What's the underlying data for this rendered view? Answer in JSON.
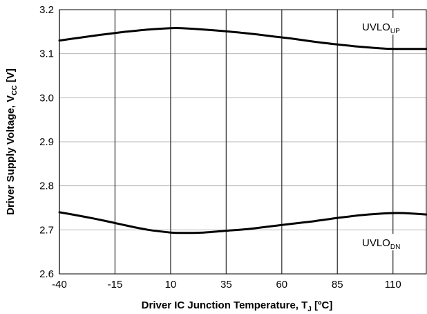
{
  "chart_data": {
    "type": "line",
    "xlabel": "Driver IC Junction Temperature, T",
    "xlabel_sub": "J",
    "xlabel_suffix": " [ºC]",
    "ylabel": "Driver Supply Voltage, V",
    "ylabel_sub": "CC",
    "ylabel_suffix": " [V]",
    "xlim": [
      -40,
      125
    ],
    "ylim": [
      2.6,
      3.2
    ],
    "x_ticks": [
      -40,
      -15,
      10,
      35,
      60,
      85,
      110
    ],
    "x_tick_labels": [
      "-40",
      "-15",
      "10",
      "35",
      "60",
      "85",
      "110"
    ],
    "y_ticks": [
      2.6,
      2.7,
      2.8,
      2.9,
      3.0,
      3.1,
      3.2
    ],
    "y_tick_labels": [
      "2.6",
      "2.7",
      "2.8",
      "2.9",
      "3.0",
      "3.1",
      "3.2"
    ],
    "grid": "vertical and horizontal major gridlines",
    "series": [
      {
        "name": "UVLO",
        "name_sub": "UP",
        "color": "#000000",
        "x": [
          -40,
          -30,
          -20,
          -10,
          0,
          10,
          15,
          25,
          35,
          45,
          55,
          65,
          75,
          85,
          95,
          105,
          110,
          115,
          125
        ],
        "y": [
          3.13,
          3.137,
          3.144,
          3.15,
          3.155,
          3.158,
          3.158,
          3.155,
          3.151,
          3.146,
          3.14,
          3.134,
          3.127,
          3.121,
          3.116,
          3.112,
          3.111,
          3.111,
          3.111
        ]
      },
      {
        "name": "UVLO",
        "name_sub": "DN",
        "color": "#000000",
        "x": [
          -40,
          -30,
          -20,
          -10,
          0,
          10,
          15,
          25,
          35,
          45,
          55,
          65,
          75,
          85,
          95,
          105,
          110,
          115,
          125
        ],
        "y": [
          2.74,
          2.731,
          2.721,
          2.71,
          2.7,
          2.694,
          2.693,
          2.694,
          2.698,
          2.702,
          2.708,
          2.714,
          2.72,
          2.727,
          2.733,
          2.737,
          2.738,
          2.738,
          2.735
        ]
      }
    ]
  }
}
